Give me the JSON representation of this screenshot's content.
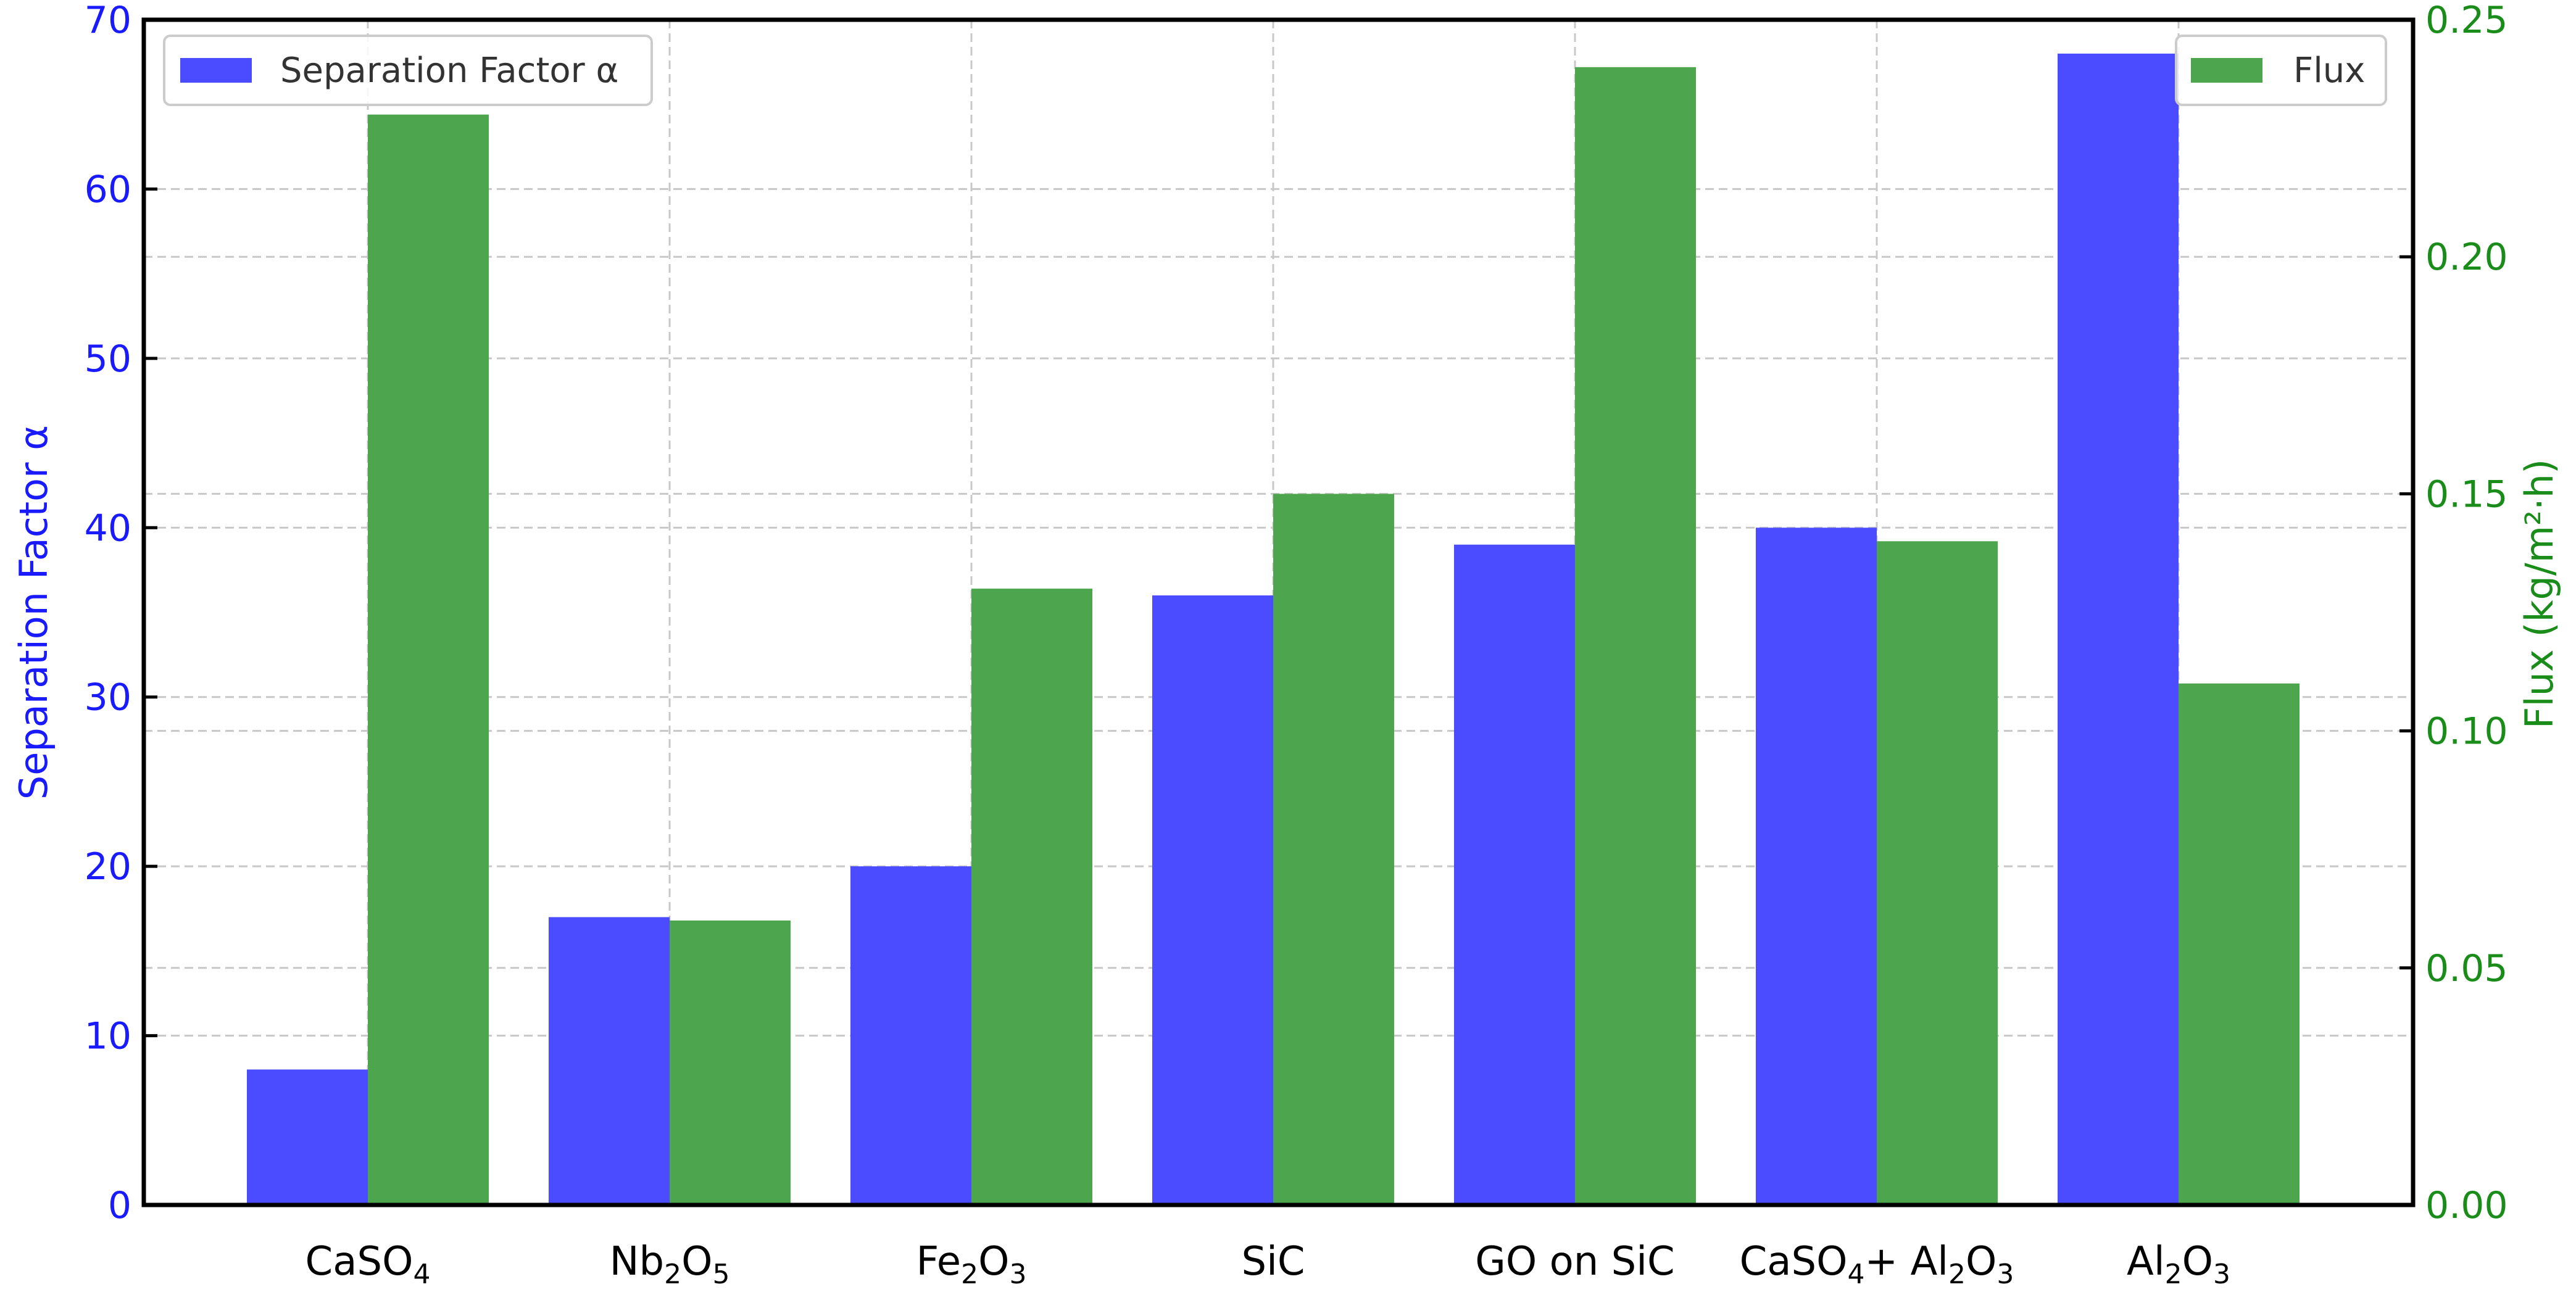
{
  "chart_data": {
    "type": "bar",
    "title": "",
    "categories": [
      {
        "base": "CaSO",
        "sub": "4",
        "rest": ""
      },
      {
        "base": "Nb",
        "sub": "2",
        "mid": "O",
        "sub2": "5"
      },
      {
        "base": "Fe",
        "sub": "2",
        "mid": "O",
        "sub2": "3"
      },
      {
        "base": "SiC"
      },
      {
        "base": "GO on SiC"
      },
      {
        "base": "CaSO",
        "sub": "4",
        "mid": "+ Al",
        "sub2": "2",
        "mid2": "O",
        "sub3": "3"
      },
      {
        "base": "Al",
        "sub": "2",
        "mid": "O",
        "sub2": "3"
      }
    ],
    "series": [
      {
        "name": "Separation Factor α",
        "axis": "left",
        "color": "#4b4bff",
        "values": [
          8,
          17,
          20,
          36,
          39,
          40,
          68
        ]
      },
      {
        "name": "Flux",
        "axis": "right",
        "color": "#4da64d",
        "values": [
          0.23,
          0.06,
          0.13,
          0.15,
          0.24,
          0.14,
          0.11
        ]
      }
    ],
    "left_axis": {
      "label": "Separation Factor α",
      "ylim": [
        0,
        70
      ],
      "ticks": [
        "0",
        "10",
        "20",
        "30",
        "40",
        "50",
        "60",
        "70"
      ],
      "color": "#1a1aff"
    },
    "right_axis": {
      "label": "Flux (kg/m²·h)",
      "ylim": [
        0,
        0.25
      ],
      "ticks": [
        "0.00",
        "0.05",
        "0.10",
        "0.15",
        "0.20",
        "0.25"
      ],
      "color": "#1a8c1a"
    },
    "grid": true,
    "legend_left": {
      "label": "Separation Factor α",
      "placement": "top-left"
    },
    "legend_right": {
      "label": "Flux",
      "placement": "top-right"
    }
  }
}
